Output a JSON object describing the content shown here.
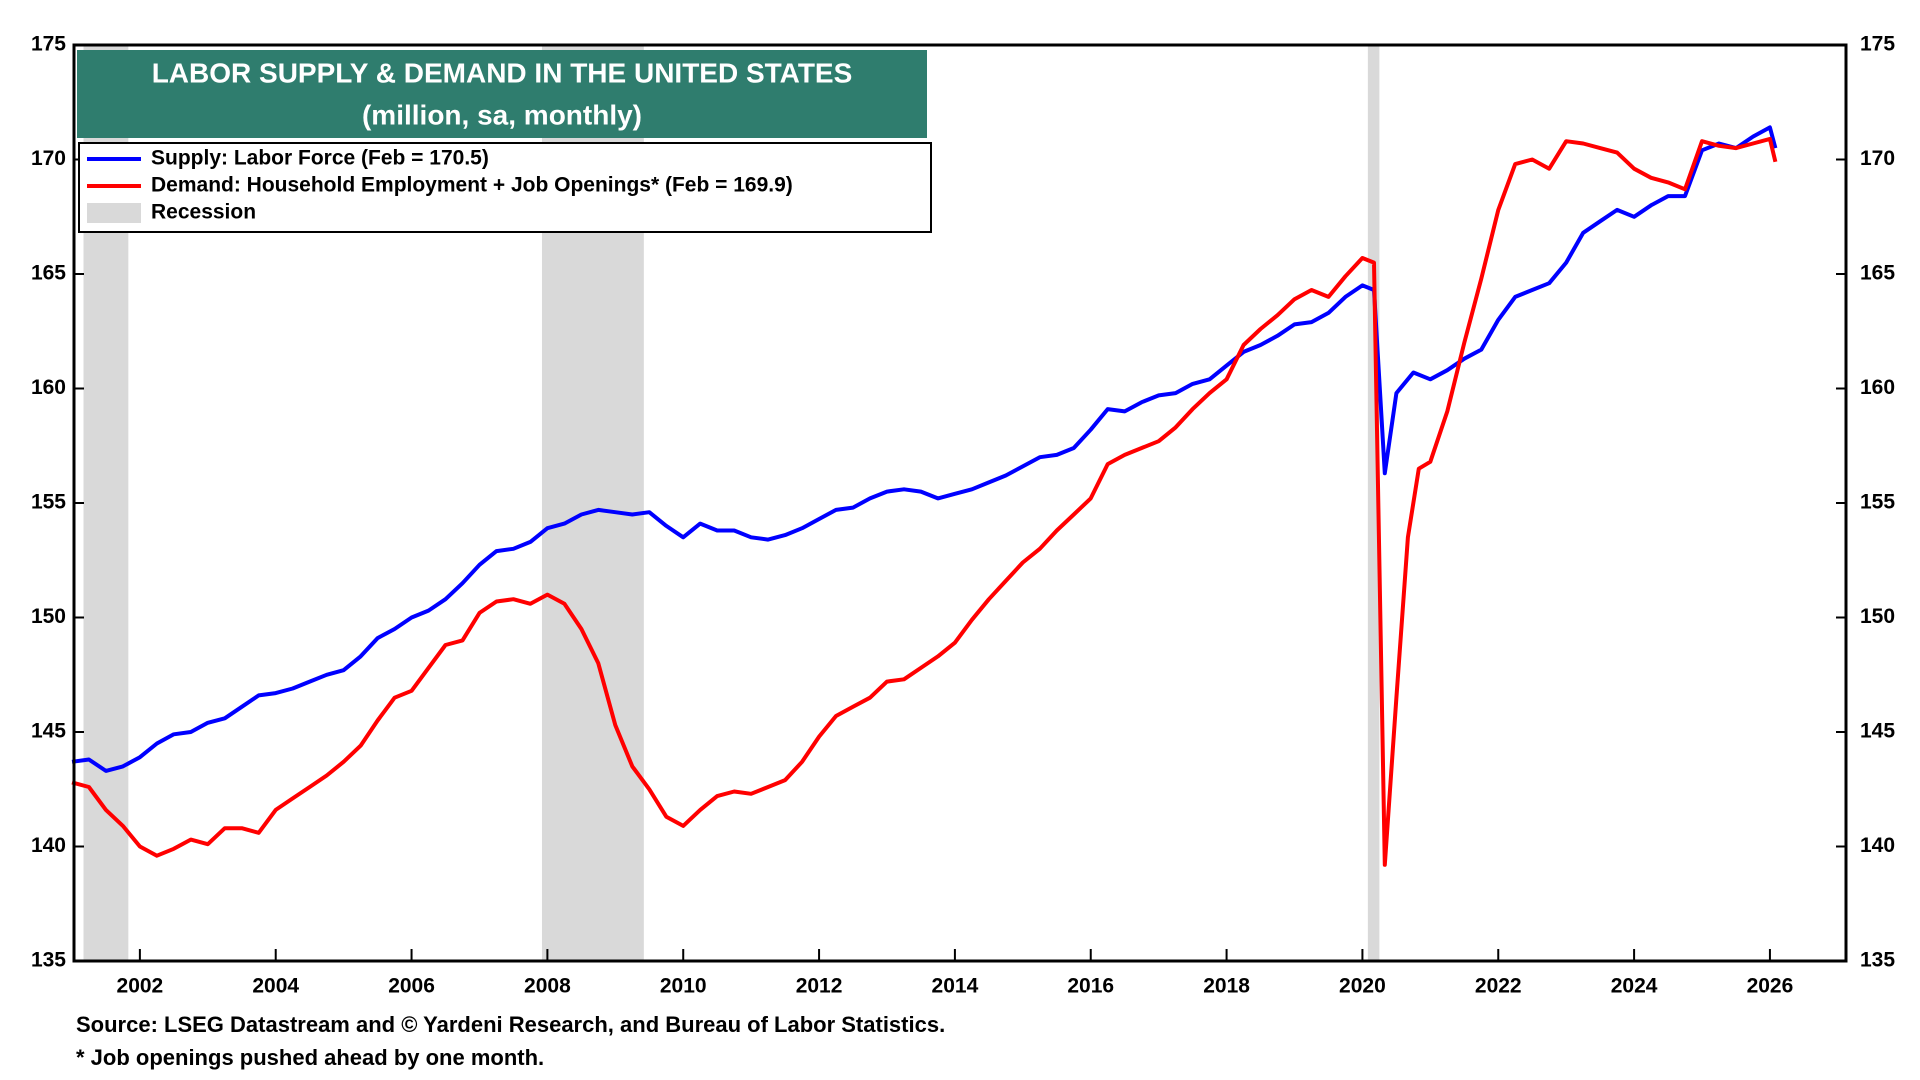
{
  "chart_data": {
    "type": "line",
    "title": "LABOR  SUPPLY & DEMAND IN THE UNITED STATES",
    "subtitle": "(million, sa, monthly)",
    "source": "Source: LSEG Datastream and © Yardeni Research, and  Bureau of Labor Statistics.",
    "footnote": "* Job openings pushed ahead by one month.",
    "recession_label": "Recession",
    "recession_color": "#d9d9d9",
    "recessions": [
      [
        2001.17,
        2001.83
      ],
      [
        2007.92,
        2009.42
      ],
      [
        2020.08,
        2020.25
      ]
    ],
    "xlim": [
      2001.03,
      2027.12
    ],
    "xticks": [
      2002,
      2004,
      2006,
      2008,
      2010,
      2012,
      2014,
      2016,
      2018,
      2020,
      2022,
      2024,
      2026
    ],
    "ylim": [
      135,
      175
    ],
    "yticks": [
      135,
      140,
      145,
      150,
      155,
      160,
      165,
      170,
      175
    ],
    "y2lim": [
      135,
      175
    ],
    "y2ticks": [
      135,
      140,
      145,
      150,
      155,
      160,
      165,
      170,
      175
    ],
    "grid": false,
    "series": [
      {
        "name": "Supply: Labor Force (Feb = 170.5)",
        "color": "#0000ff",
        "x": [
          2001,
          2001.25,
          2001.5,
          2001.75,
          2002,
          2002.25,
          2002.5,
          2002.75,
          2003,
          2003.25,
          2003.5,
          2003.75,
          2004,
          2004.25,
          2004.5,
          2004.75,
          2005,
          2005.25,
          2005.5,
          2005.75,
          2006,
          2006.25,
          2006.5,
          2006.75,
          2007,
          2007.25,
          2007.5,
          2007.75,
          2008,
          2008.25,
          2008.5,
          2008.75,
          2009,
          2009.25,
          2009.5,
          2009.75,
          2010,
          2010.25,
          2010.5,
          2010.75,
          2011,
          2011.25,
          2011.5,
          2011.75,
          2012,
          2012.25,
          2012.5,
          2012.75,
          2013,
          2013.25,
          2013.5,
          2013.75,
          2014,
          2014.25,
          2014.5,
          2014.75,
          2015,
          2015.25,
          2015.5,
          2015.75,
          2016,
          2016.25,
          2016.5,
          2016.75,
          2017,
          2017.25,
          2017.5,
          2017.75,
          2018,
          2018.25,
          2018.5,
          2018.75,
          2019,
          2019.25,
          2019.5,
          2019.75,
          2020,
          2020.17,
          2020.33,
          2020.5,
          2020.75,
          2021,
          2021.25,
          2021.5,
          2021.75,
          2022,
          2022.25,
          2022.5,
          2022.75,
          2023,
          2023.25,
          2023.5,
          2023.75,
          2024,
          2024.25,
          2024.5,
          2024.75,
          2025,
          2025.25,
          2025.5,
          2025.75,
          2026,
          2026.08
        ],
        "values": [
          143.7,
          143.8,
          143.3,
          143.5,
          143.9,
          144.5,
          144.9,
          145.0,
          145.4,
          145.6,
          146.1,
          146.6,
          146.7,
          146.9,
          147.2,
          147.5,
          147.7,
          148.3,
          149.1,
          149.5,
          150.0,
          150.3,
          150.8,
          151.5,
          152.3,
          152.9,
          153.0,
          153.3,
          153.9,
          154.1,
          154.5,
          154.7,
          154.6,
          154.5,
          154.6,
          154.0,
          153.5,
          154.1,
          153.8,
          153.8,
          153.5,
          153.4,
          153.6,
          153.9,
          154.3,
          154.7,
          154.8,
          155.2,
          155.5,
          155.6,
          155.5,
          155.2,
          155.4,
          155.6,
          155.9,
          156.2,
          156.6,
          157.0,
          157.1,
          157.4,
          158.2,
          159.1,
          159.0,
          159.4,
          159.7,
          159.8,
          160.2,
          160.4,
          161.0,
          161.6,
          161.9,
          162.3,
          162.8,
          162.9,
          163.3,
          164.0,
          164.5,
          164.3,
          156.3,
          159.8,
          160.7,
          160.4,
          160.8,
          161.3,
          161.7,
          163.0,
          164.0,
          164.3,
          164.6,
          165.5,
          166.8,
          167.3,
          167.8,
          167.5,
          168.0,
          168.4,
          168.4,
          170.4,
          170.7,
          170.5,
          171.0,
          171.4,
          170.5
        ]
      },
      {
        "name": "Demand: Household Employment + Job Openings* (Feb = 169.9)",
        "color": "#ff0000",
        "x": [
          2001,
          2001.25,
          2001.5,
          2001.75,
          2002,
          2002.25,
          2002.5,
          2002.75,
          2003,
          2003.25,
          2003.5,
          2003.75,
          2004,
          2004.25,
          2004.5,
          2004.75,
          2005,
          2005.25,
          2005.5,
          2005.75,
          2006,
          2006.25,
          2006.5,
          2006.75,
          2007,
          2007.25,
          2007.5,
          2007.75,
          2008,
          2008.25,
          2008.5,
          2008.75,
          2009,
          2009.25,
          2009.5,
          2009.75,
          2010,
          2010.25,
          2010.5,
          2010.75,
          2011,
          2011.25,
          2011.5,
          2011.75,
          2012,
          2012.25,
          2012.5,
          2012.75,
          2013,
          2013.25,
          2013.5,
          2013.75,
          2014,
          2014.25,
          2014.5,
          2014.75,
          2015,
          2015.25,
          2015.5,
          2015.75,
          2016,
          2016.25,
          2016.5,
          2016.75,
          2017,
          2017.25,
          2017.5,
          2017.75,
          2018,
          2018.25,
          2018.5,
          2018.75,
          2019,
          2019.25,
          2019.5,
          2019.75,
          2020,
          2020.17,
          2020.33,
          2020.5,
          2020.67,
          2020.83,
          2021,
          2021.25,
          2021.5,
          2021.75,
          2022,
          2022.25,
          2022.5,
          2022.75,
          2023,
          2023.25,
          2023.5,
          2023.75,
          2024,
          2024.25,
          2024.5,
          2024.75,
          2025,
          2025.25,
          2025.5,
          2025.75,
          2026,
          2026.08
        ],
        "values": [
          142.8,
          142.6,
          141.6,
          140.9,
          140.0,
          139.6,
          139.9,
          140.3,
          140.1,
          140.8,
          140.8,
          140.6,
          141.6,
          142.1,
          142.6,
          143.1,
          143.7,
          144.4,
          145.5,
          146.5,
          146.8,
          147.8,
          148.8,
          149.0,
          150.2,
          150.7,
          150.8,
          150.6,
          151.0,
          150.6,
          149.5,
          148.0,
          145.3,
          143.5,
          142.5,
          141.3,
          140.9,
          141.6,
          142.2,
          142.4,
          142.3,
          142.6,
          142.9,
          143.7,
          144.8,
          145.7,
          146.1,
          146.5,
          147.2,
          147.3,
          147.8,
          148.3,
          148.9,
          149.9,
          150.8,
          151.6,
          152.4,
          153.0,
          153.8,
          154.5,
          155.2,
          156.7,
          157.1,
          157.4,
          157.7,
          158.3,
          159.1,
          159.8,
          160.4,
          161.9,
          162.6,
          163.2,
          163.9,
          164.3,
          164.0,
          164.9,
          165.7,
          165.5,
          139.2,
          146.5,
          153.5,
          156.5,
          156.8,
          159.0,
          162.0,
          164.8,
          167.8,
          169.8,
          170.0,
          169.6,
          170.8,
          170.7,
          170.5,
          170.3,
          169.6,
          169.2,
          169.0,
          168.7,
          170.8,
          170.6,
          170.5,
          170.7,
          170.9,
          169.9
        ]
      }
    ]
  }
}
